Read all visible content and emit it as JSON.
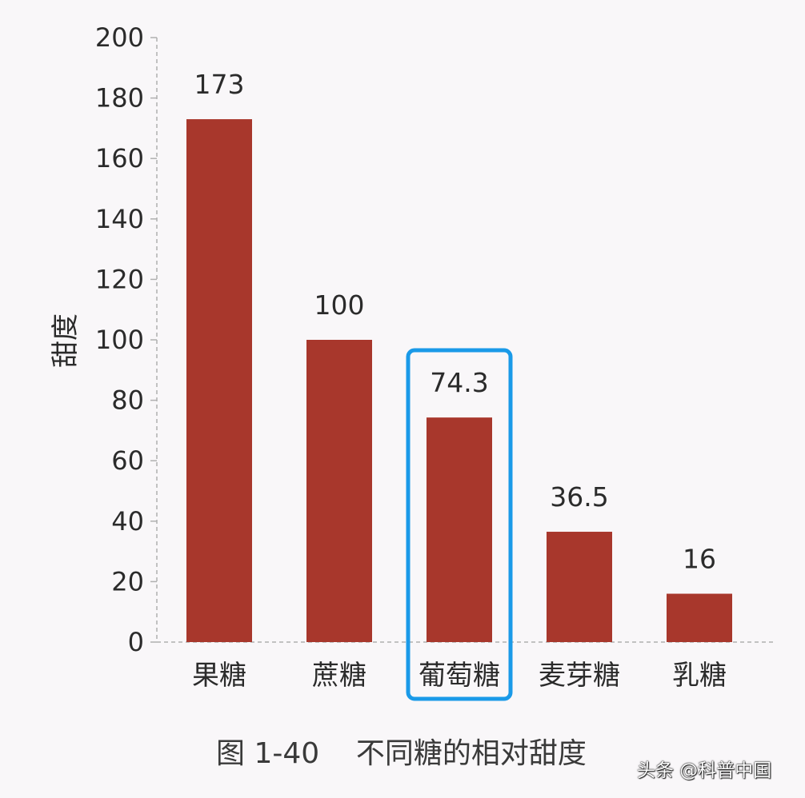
{
  "chart_data": {
    "type": "bar",
    "categories": [
      "果糖",
      "蔗糖",
      "葡萄糖",
      "麦芽糖",
      "乳糖"
    ],
    "values": [
      173,
      100,
      74.3,
      36.5,
      16
    ],
    "value_labels": [
      "173",
      "100",
      "74.3",
      "36.5",
      "16"
    ],
    "ylabel": "甜度",
    "xlabel": "",
    "ylim": [
      0,
      200
    ],
    "yticks": [
      0,
      20,
      40,
      60,
      80,
      100,
      120,
      140,
      160,
      180,
      200
    ],
    "grid": false,
    "highlighted_category": "葡萄糖",
    "caption": "图 1-40    不同糖的相对甜度"
  },
  "colors": {
    "bar": "#a8372c",
    "highlight_box": "#1a9ae8",
    "axis": "#b0b0b0",
    "text": "#2b2b2b",
    "background": "#f9f7f9"
  },
  "watermark": "头条 @科普中国"
}
